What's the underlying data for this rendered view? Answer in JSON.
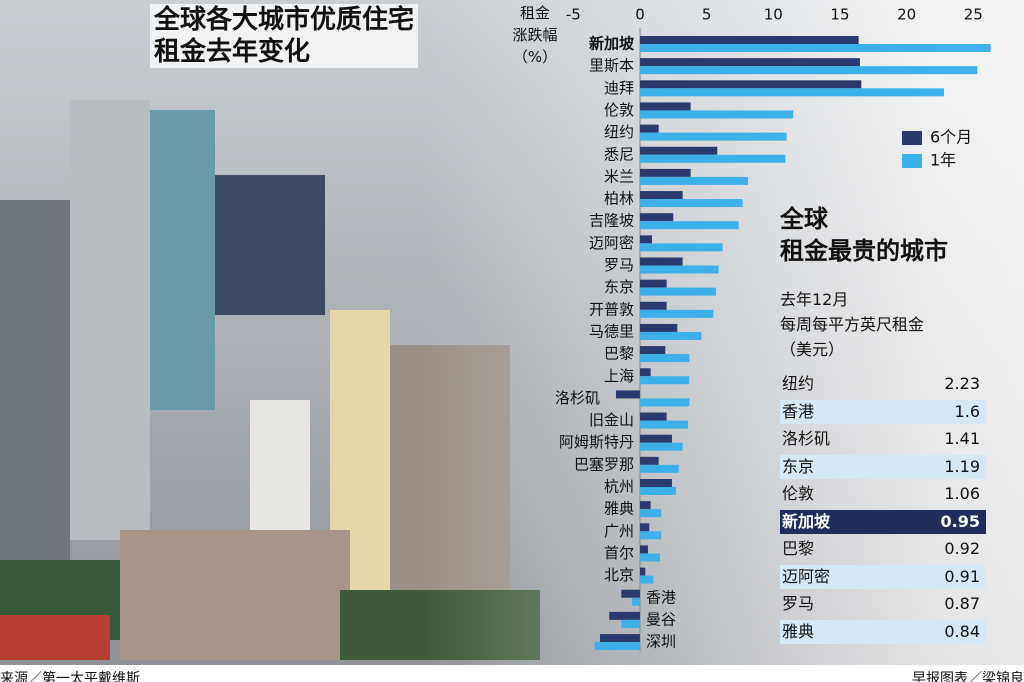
{
  "chart_data": {
    "type": "bar",
    "orientation": "horizontal",
    "title": "全球各大城市优质住宅\n租金去年变化",
    "x_label": "租金\n涨跌幅\n（%）",
    "categories": [
      "新加坡",
      "里斯本",
      "迪拜",
      "伦敦",
      "纽约",
      "悉尼",
      "米兰",
      "柏林",
      "吉隆坡",
      "迈阿密",
      "罗马",
      "东京",
      "开普敦",
      "马德里",
      "巴黎",
      "上海",
      "洛杉矶",
      "旧金山",
      "阿姆斯特丹",
      "巴塞罗那",
      "杭州",
      "雅典",
      "广州",
      "首尔",
      "北京",
      "香港",
      "曼谷",
      "深圳"
    ],
    "series": [
      {
        "name": "6个月",
        "color": "#2b3a6e",
        "values": [
          16.4,
          16.5,
          16.6,
          3.8,
          1.4,
          5.8,
          3.8,
          3.2,
          2.5,
          0.9,
          3.2,
          2.0,
          2.0,
          2.8,
          1.9,
          0.8,
          -1.8,
          2.0,
          2.4,
          1.4,
          2.4,
          0.8,
          0.7,
          0.6,
          0.4,
          -1.4,
          -2.3,
          -3.0
        ]
      },
      {
        "name": "1年",
        "color": "#3cb0e8",
        "values": [
          26.3,
          25.3,
          22.8,
          11.5,
          11.0,
          10.9,
          8.1,
          7.7,
          7.4,
          6.2,
          5.9,
          5.7,
          5.5,
          4.6,
          3.7,
          3.7,
          3.7,
          3.6,
          3.2,
          2.9,
          2.7,
          1.6,
          1.6,
          1.5,
          1.0,
          -0.6,
          -1.4,
          -3.4
        ]
      }
    ],
    "xlim": [
      -5,
      26.5
    ],
    "xticks": [
      -5,
      0,
      5,
      10,
      15,
      20,
      25
    ],
    "grid": false,
    "legend": "right",
    "highlight_index": 0
  },
  "table": {
    "title": "全球\n租金最贵的城市",
    "subtitle": "去年12月\n每周每平方英尺租金\n（美元）",
    "rows": [
      [
        "纽约",
        2.23
      ],
      [
        "香港",
        1.6
      ],
      [
        "洛杉矶",
        1.41
      ],
      [
        "东京",
        1.19
      ],
      [
        "伦敦",
        1.06
      ],
      [
        "新加坡",
        0.95
      ],
      [
        "巴黎",
        0.92
      ],
      [
        "迈阿密",
        0.91
      ],
      [
        "罗马",
        0.87
      ],
      [
        "雅典",
        0.84
      ]
    ],
    "highlight_row": 5
  },
  "footer": {
    "source": "来源／第一太平戴维斯",
    "credit": "早报图表／梁锦良"
  }
}
